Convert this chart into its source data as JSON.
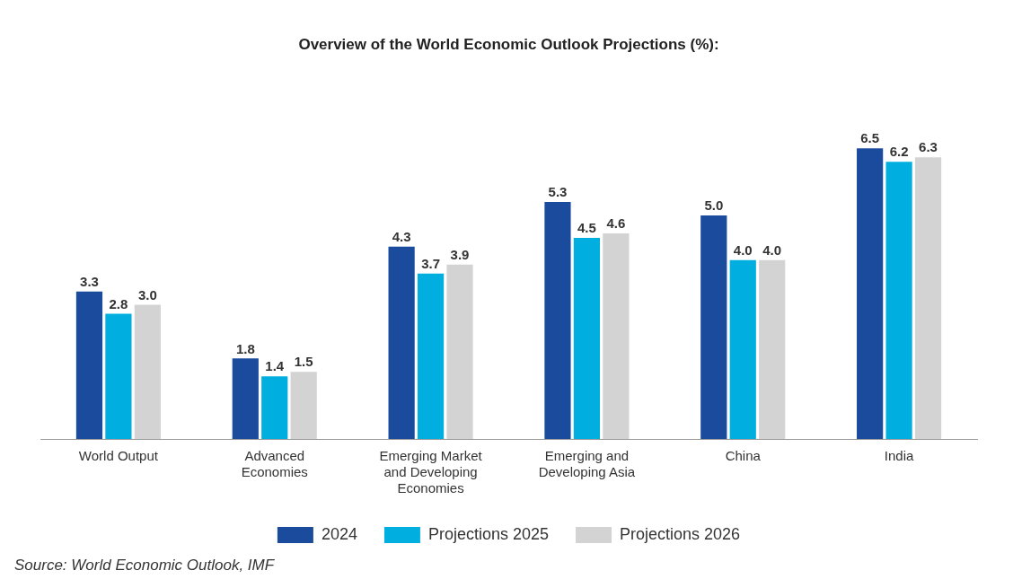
{
  "chart_data": {
    "type": "bar",
    "title": "Overview of the World Economic Outlook Projections (%):",
    "categories": [
      "World Output",
      "Advanced Economies",
      "Emerging Market and Developing Economies",
      "Emerging and Developing Asia",
      "China",
      "India"
    ],
    "series": [
      {
        "name": "2024",
        "color": "#1a4b9c",
        "values": [
          3.3,
          1.8,
          4.3,
          5.3,
          5.0,
          6.5
        ],
        "value_labels": [
          "3.3",
          "1.8",
          "4.3",
          "5.3",
          "5.0",
          "6.5"
        ]
      },
      {
        "name": "Projections 2025",
        "color": "#00aee0",
        "values": [
          2.8,
          1.4,
          3.7,
          4.5,
          4.0,
          6.2
        ],
        "value_labels": [
          "2.8",
          "1.4",
          "3.7",
          "4.5",
          "4.0",
          "6.2"
        ]
      },
      {
        "name": "Projections 2026",
        "color": "#d3d3d3",
        "values": [
          3.0,
          1.5,
          3.9,
          4.6,
          4.0,
          6.3
        ],
        "value_labels": [
          "3.0",
          "1.5",
          "3.9",
          "4.6",
          "4.0",
          "6.3"
        ]
      }
    ],
    "legend": "bottom",
    "grid": false,
    "tick_labels": "x",
    "annotations": [
      "Source: World Economic Outlook, IMF"
    ]
  }
}
